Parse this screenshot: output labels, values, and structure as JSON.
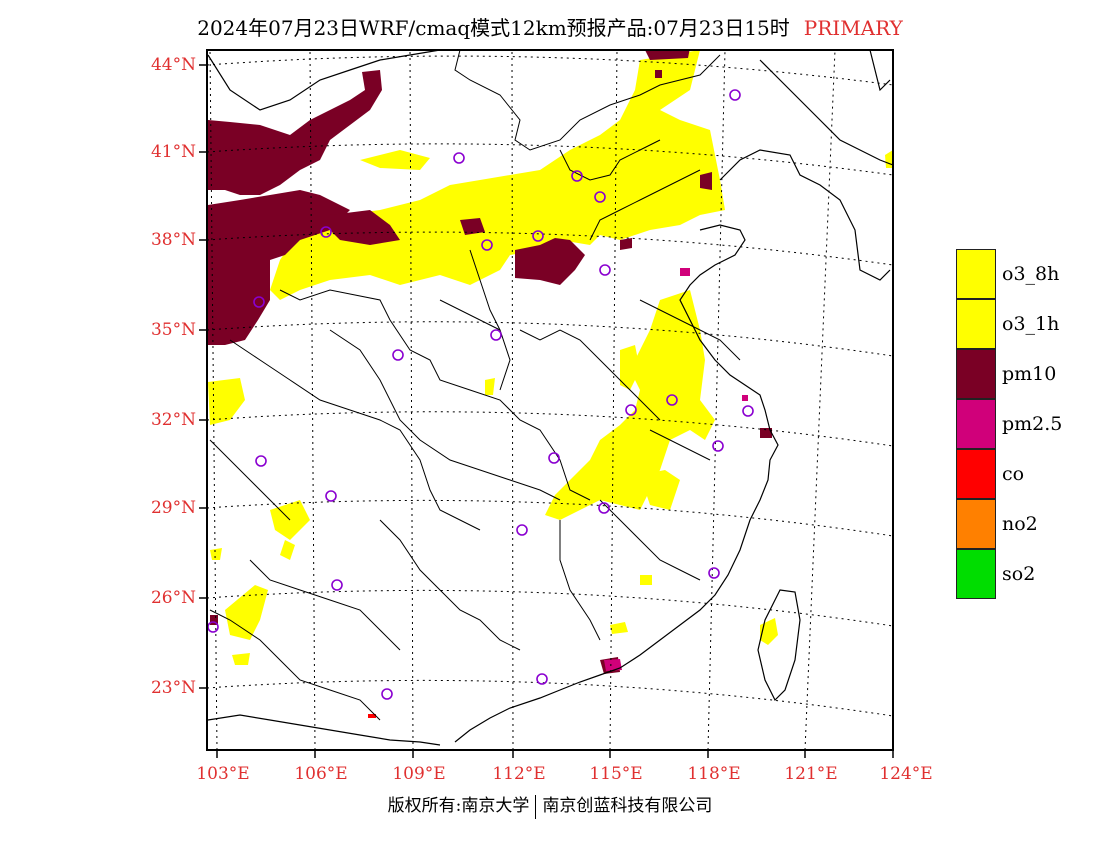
{
  "title": {
    "text": "2024年07月23日WRF/cmaq模式12km预报产品:07月23日15时",
    "tag": "PRIMARY",
    "tag_color": "#e03030"
  },
  "axes": {
    "lat_labels": [
      "44°N",
      "41°N",
      "38°N",
      "35°N",
      "32°N",
      "29°N",
      "26°N",
      "23°N"
    ],
    "lat_values": [
      44,
      41,
      38,
      35,
      32,
      29,
      26,
      23
    ],
    "lon_labels": [
      "103°E",
      "106°E",
      "109°E",
      "112°E",
      "115°E",
      "118°E",
      "121°E",
      "124°E"
    ],
    "lon_values": [
      103,
      106,
      109,
      112,
      115,
      118,
      121,
      124
    ],
    "label_color": "#e03030",
    "lat_range": [
      21,
      44.5
    ],
    "lon_range": [
      103,
      124
    ],
    "grid": "dotted"
  },
  "legend": {
    "items": [
      {
        "label": "o3_8h",
        "color": "#ffff00"
      },
      {
        "label": "o3_1h",
        "color": "#ffff00"
      },
      {
        "label": "pm10",
        "color": "#7a0025"
      },
      {
        "label": "pm2.5",
        "color": "#d0007a"
      },
      {
        "label": "co",
        "color": "#ff0000"
      },
      {
        "label": "no2",
        "color": "#ff8000"
      },
      {
        "label": "so2",
        "color": "#00dd00"
      }
    ]
  },
  "map_regions": {
    "pollutant_colors": {
      "o3": "#ffff00",
      "pm10": "#7a0025",
      "pm25": "#d0007a",
      "co": "#ff0000"
    }
  },
  "footer": {
    "left": "版权所有:南京大学",
    "right": "南京创蓝科技有限公司"
  }
}
